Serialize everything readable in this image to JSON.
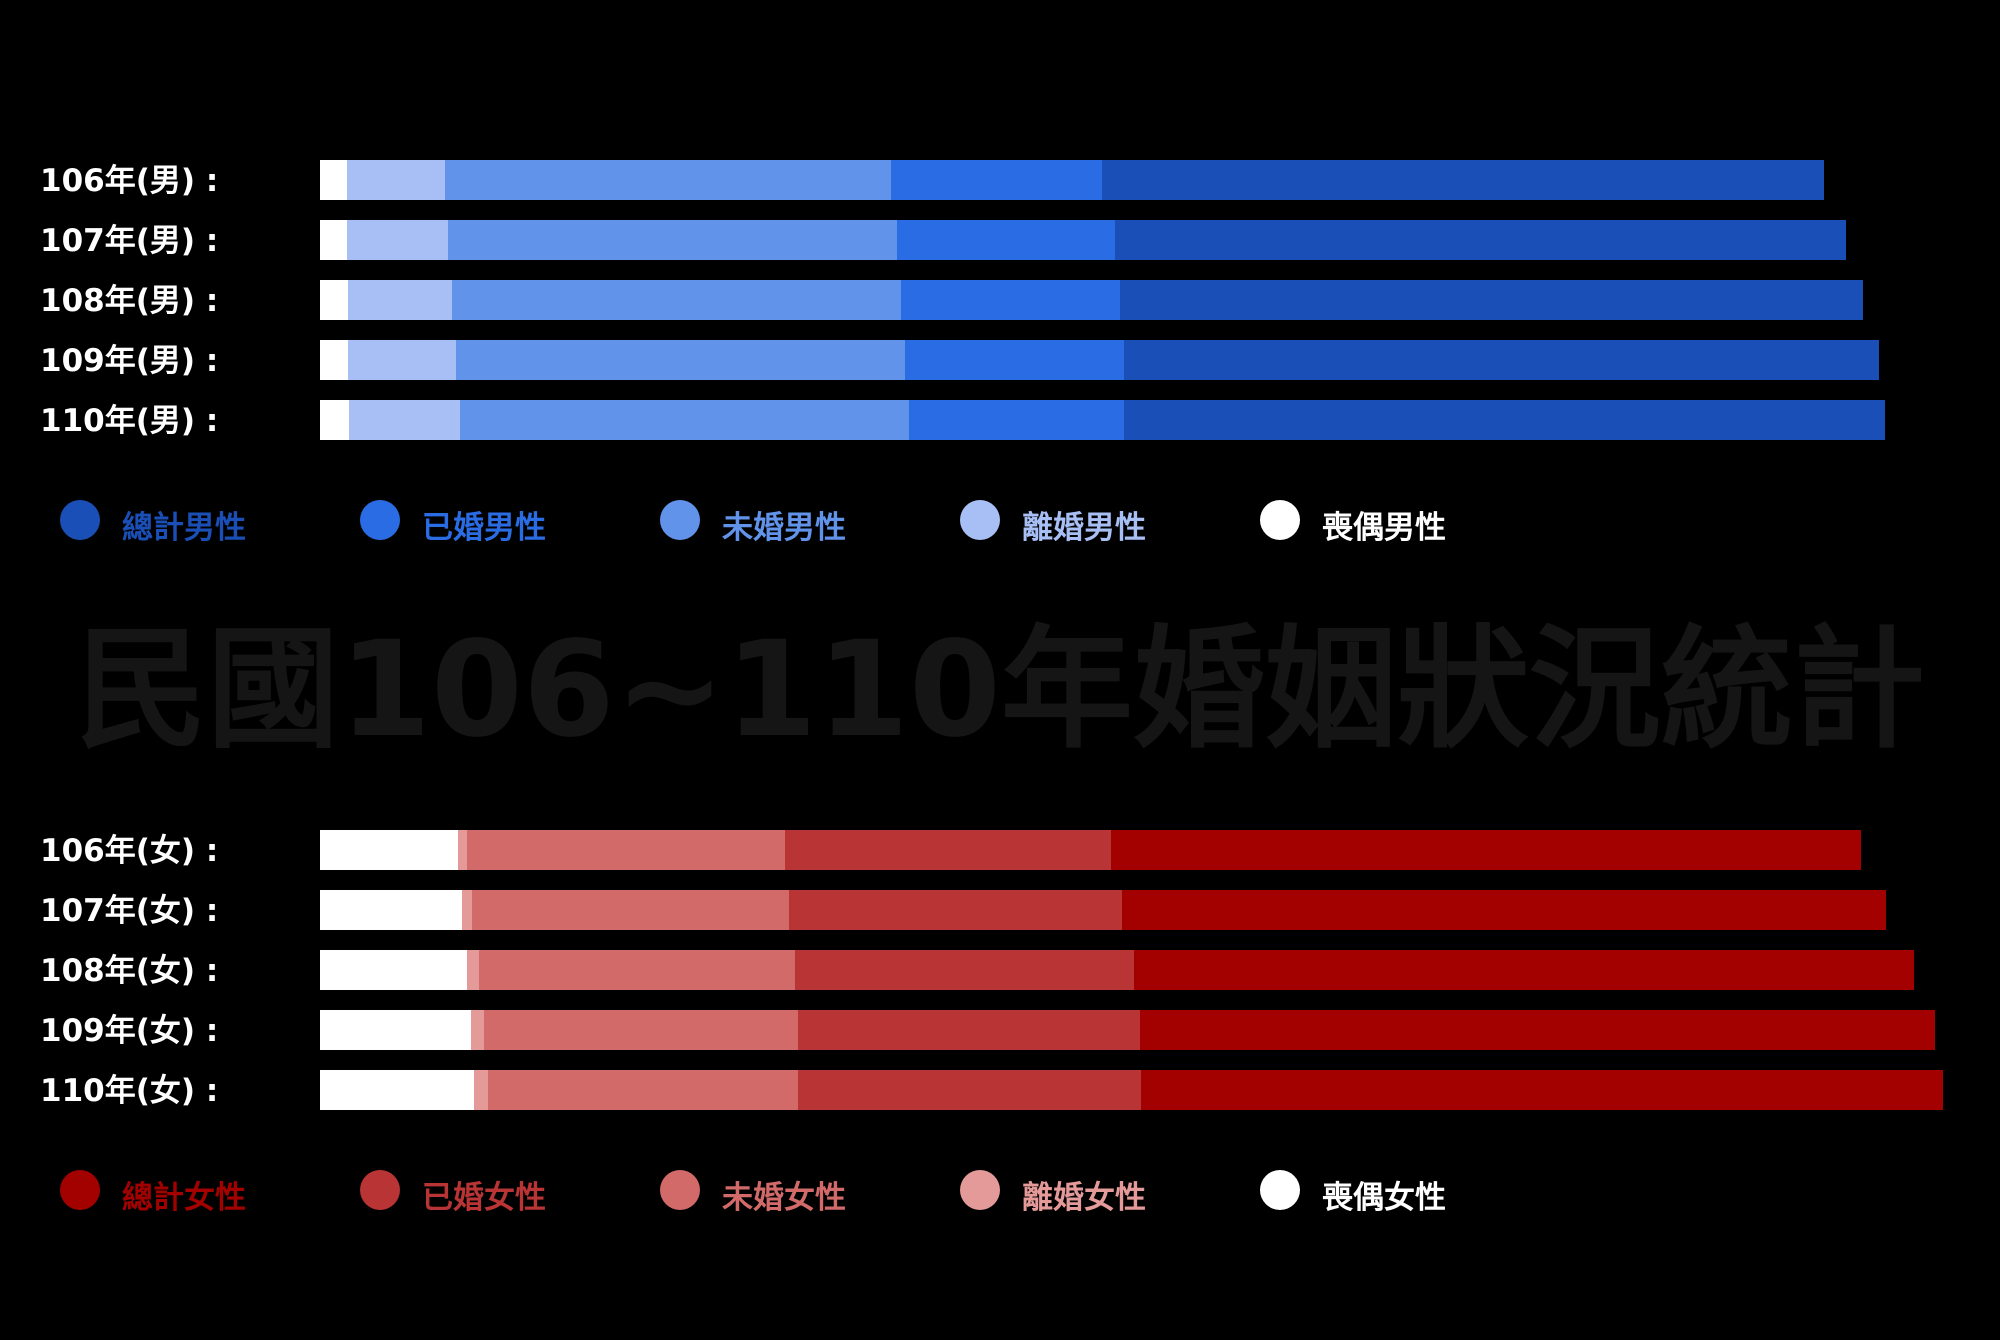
{
  "watermark": "民國106~110年婚姻狀況統計",
  "chart_data": [
    {
      "type": "bar",
      "orientation": "horizontal",
      "stacked": true,
      "categories": [
        "106年(男) :",
        "107年(男) :",
        "108年(男) :",
        "109年(男) :",
        "110年(男) :"
      ],
      "series": [
        {
          "name": "喪偶男性",
          "color": "#ffffff",
          "values": [
            27,
            27,
            28,
            28,
            29
          ]
        },
        {
          "name": "離婚男性",
          "color": "#a8bff5",
          "values": [
            98,
            101,
            104,
            108,
            111
          ]
        },
        {
          "name": "未婚男性",
          "color": "#6193eb",
          "values": [
            446,
            449,
            449,
            449,
            449
          ]
        },
        {
          "name": "已婚男性",
          "color": "#2a6ce3",
          "values": [
            211,
            218,
            219,
            219,
            215
          ]
        },
        {
          "name": "總計男性",
          "color": "#1b4fb8",
          "values": [
            722,
            731,
            743,
            755,
            761
          ]
        }
      ],
      "legend_position": "bottom-left",
      "grid": false
    },
    {
      "type": "bar",
      "orientation": "horizontal",
      "stacked": true,
      "categories": [
        "106年(女) :",
        "107年(女) :",
        "108年(女) :",
        "109年(女) :",
        "110年(女) :"
      ],
      "series": [
        {
          "name": "喪偶女性",
          "color": "#ffffff",
          "values": [
            138,
            142,
            147,
            151,
            154
          ]
        },
        {
          "name": "離婚女性",
          "color": "#e59a9a",
          "values": [
            9,
            10,
            12,
            13,
            14
          ]
        },
        {
          "name": "未婚女性",
          "color": "#d26a6a",
          "values": [
            318,
            317,
            316,
            314,
            310
          ]
        },
        {
          "name": "已婚女性",
          "color": "#b93434",
          "values": [
            326,
            333,
            339,
            342,
            343
          ]
        },
        {
          "name": "總計女性",
          "color": "#a30000",
          "values": [
            750,
            764,
            780,
            795,
            802
          ]
        }
      ],
      "legend_position": "bottom-left",
      "grid": false
    }
  ]
}
